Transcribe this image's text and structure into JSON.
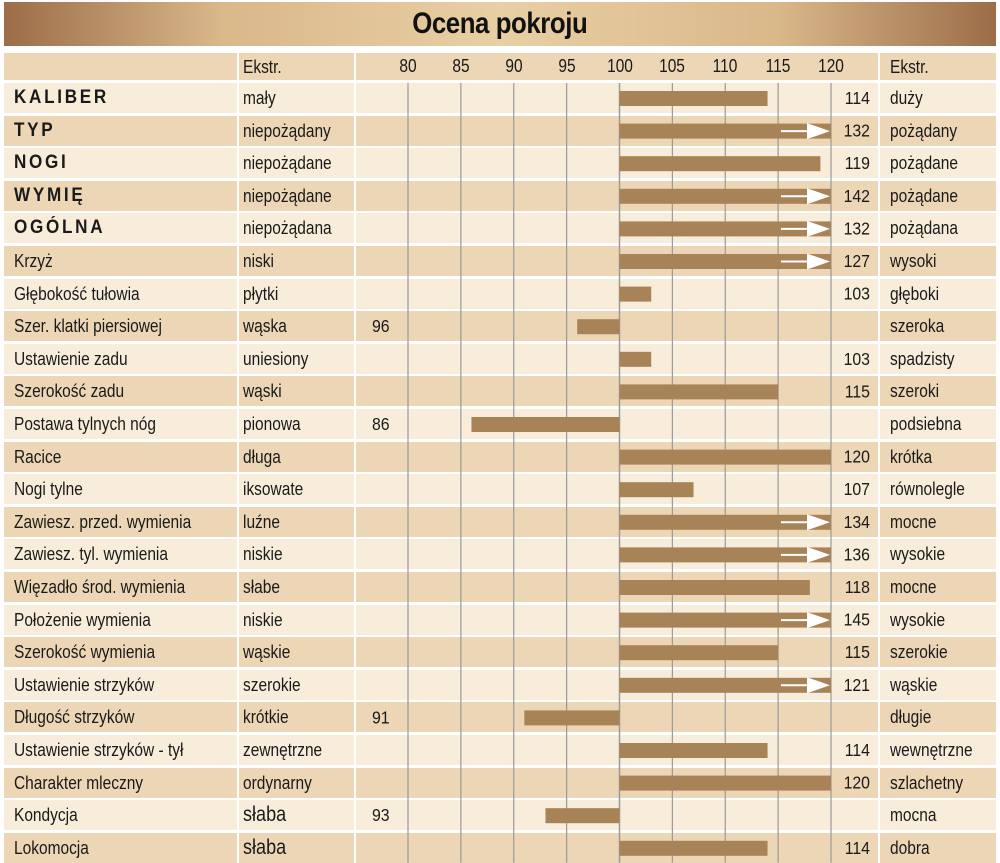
{
  "title": "Ocena pokroju",
  "header": {
    "extreme_left": "Ekstr.",
    "extreme_right": "Ekstr."
  },
  "colors": {
    "row_light": "#f8ecda",
    "row_dark": "#ecd6b5",
    "header_row": "#ecd6b5",
    "bar": "#a88358",
    "grid": "#9a9a9a",
    "title_gradient_edge": "#9c6d48",
    "title_gradient_mid": "#e8cfa4"
  },
  "chart_data": {
    "type": "bar",
    "orientation": "horizontal",
    "title": "Ocena pokroju",
    "xlim": [
      80,
      120
    ],
    "baseline": 100,
    "ticks": [
      80,
      85,
      90,
      95,
      100,
      105,
      110,
      115,
      120
    ],
    "tick_labels": [
      "80",
      "85",
      "90",
      "95",
      "100",
      "105",
      "110",
      "115",
      "120"
    ],
    "note": "Values above 120 are shown with an arrow at the axis end",
    "rows": [
      {
        "trait": "KALIBER",
        "bold": true,
        "low": "mały",
        "high": "duży",
        "value": 114,
        "label": "114"
      },
      {
        "trait": "TYP",
        "bold": true,
        "low": "niepożądany",
        "high": "pożądany",
        "value": 132,
        "label": "132"
      },
      {
        "trait": "NOGI",
        "bold": true,
        "low": "niepożądane",
        "high": "pożądane",
        "value": 119,
        "label": "119"
      },
      {
        "trait": "WYMIĘ",
        "bold": true,
        "low": "niepożądane",
        "high": "pożądane",
        "value": 142,
        "label": "142"
      },
      {
        "trait": "OGÓLNA",
        "bold": true,
        "low": "niepożądana",
        "high": "pożądana",
        "value": 132,
        "label": "132"
      },
      {
        "trait": "Krzyż",
        "bold": false,
        "low": "niski",
        "high": "wysoki",
        "value": 127,
        "label": "127"
      },
      {
        "trait": "Głębokość tułowia",
        "bold": false,
        "low": "płytki",
        "high": "głęboki",
        "value": 103,
        "label": "103"
      },
      {
        "trait": "Szer. klatki piersiowej",
        "bold": false,
        "low": "wąska",
        "high": "szeroka",
        "value": 96,
        "label": "96"
      },
      {
        "trait": "Ustawienie zadu",
        "bold": false,
        "low": "uniesiony",
        "high": "spadzisty",
        "value": 103,
        "label": "103"
      },
      {
        "trait": "Szerokość zadu",
        "bold": false,
        "low": "wąski",
        "high": "szeroki",
        "value": 115,
        "label": "115"
      },
      {
        "trait": "Postawa tylnych nóg",
        "bold": false,
        "low": "pionowa",
        "high": "podsiebna",
        "value": 86,
        "label": "86"
      },
      {
        "trait": "Racice",
        "bold": false,
        "low": "długa",
        "high": "krótka",
        "value": 120,
        "label": "120"
      },
      {
        "trait": "Nogi tylne",
        "bold": false,
        "low": "iksowate",
        "high": "równolegle",
        "value": 107,
        "label": "107"
      },
      {
        "trait": "Zawiesz. przed. wymienia",
        "bold": false,
        "low": "luźne",
        "high": "mocne",
        "value": 134,
        "label": "134"
      },
      {
        "trait": "Zawiesz. tyl. wymienia",
        "bold": false,
        "low": "niskie",
        "high": "wysokie",
        "value": 136,
        "label": "136"
      },
      {
        "trait": "Więzadło środ. wymienia",
        "bold": false,
        "low": "słabe",
        "high": "mocne",
        "value": 118,
        "label": "118"
      },
      {
        "trait": "Położenie wymienia",
        "bold": false,
        "low": "niskie",
        "high": "wysokie",
        "value": 145,
        "label": "145"
      },
      {
        "trait": "Szerokość wymienia",
        "bold": false,
        "low": "wąskie",
        "high": "szerokie",
        "value": 115,
        "label": "115"
      },
      {
        "trait": "Ustawienie strzyków",
        "bold": false,
        "low": "szerokie",
        "high": "wąskie",
        "value": 121,
        "label": "121"
      },
      {
        "trait": "Długość strzyków",
        "bold": false,
        "low": "krótkie",
        "high": "długie",
        "value": 91,
        "label": "91"
      },
      {
        "trait": "Ustawienie strzyków - tył",
        "bold": false,
        "low": "zewnętrzne",
        "high": "wewnętrzne",
        "value": 114,
        "label": "114"
      },
      {
        "trait": "Charakter mleczny",
        "bold": false,
        "low": "ordynarny",
        "high": "szlachetny",
        "value": 120,
        "label": "120"
      },
      {
        "trait": "Kondycja",
        "bold": false,
        "low": "słaba",
        "big_low": true,
        "high": "mocna",
        "value": 93,
        "label": "93"
      },
      {
        "trait": "Lokomocja",
        "bold": false,
        "low": "słaba",
        "big_low": true,
        "high": "dobra",
        "value": 114,
        "label": "114"
      }
    ]
  }
}
